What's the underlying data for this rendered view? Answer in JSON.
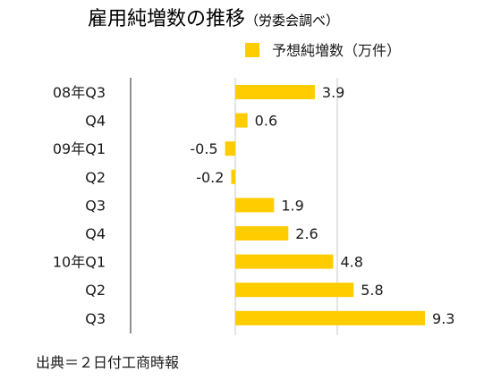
{
  "chart_data": {
    "type": "bar",
    "orientation": "horizontal",
    "title": "雇用純増数の推移",
    "subtitle": "（労委会調べ）",
    "legend": {
      "label": "予想純増数（万件）",
      "color": "#FFCC00",
      "position": "top-right"
    },
    "categories": [
      "08年Q3",
      "Q4",
      "09年Q1",
      "Q2",
      "Q3",
      "Q4",
      "10年Q1",
      "Q2",
      "Q3"
    ],
    "series": [
      {
        "name": "予想純増数（万件）",
        "values": [
          3.9,
          0.6,
          -0.5,
          -0.2,
          1.9,
          2.6,
          4.8,
          5.8,
          9.3
        ]
      }
    ],
    "value_labels": [
      "3.9",
      "0.6",
      "-0.5",
      "-0.2",
      "1.9",
      "2.6",
      "4.8",
      "5.8",
      "9.3"
    ],
    "xlim": [
      -2,
      10
    ],
    "gridlines_at": [
      0,
      5
    ],
    "grid": true,
    "bar_color": "#FFCC00",
    "source": "出典＝２日付工商時報"
  }
}
